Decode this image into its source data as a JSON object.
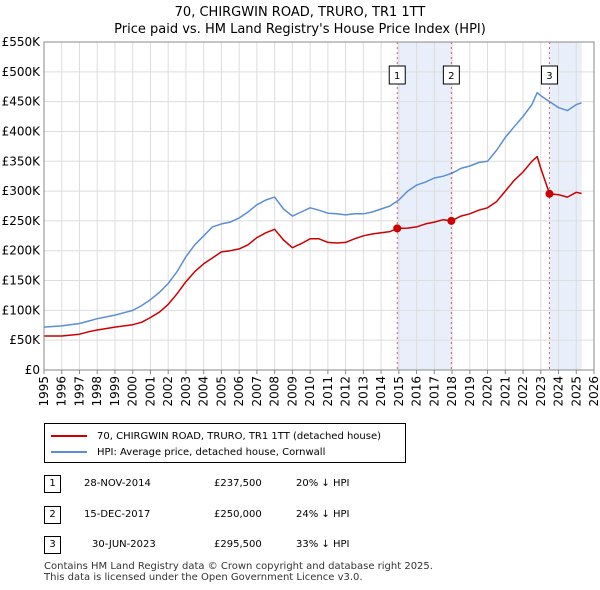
{
  "title": {
    "line1": "70, CHIRGWIN ROAD, TRURO, TR1 1TT",
    "line2": "Price paid vs. HM Land Registry's House Price Index (HPI)"
  },
  "colors": {
    "property": "#cc0000",
    "hpi": "#5b8ed6",
    "shade": "#e8eefa",
    "marker_line": "#cc0000"
  },
  "legend": {
    "property_label": "70, CHIRGWIN ROAD, TRURO, TR1 1TT (detached house)",
    "hpi_label": "HPI: Average price, detached house, Cornwall"
  },
  "sales": [
    {
      "num": "1",
      "date": "28-NOV-2014",
      "price": "£237,500",
      "hpi": "20% ↓ HPI",
      "year": 2014.91,
      "value": 237500
    },
    {
      "num": "2",
      "date": "15-DEC-2017",
      "price": "£250,000",
      "hpi": "24% ↓ HPI",
      "year": 2017.96,
      "value": 250000
    },
    {
      "num": "3",
      "date": "30-JUN-2023",
      "price": "£295,500",
      "hpi": "33% ↓ HPI",
      "year": 2023.49,
      "value": 295500
    }
  ],
  "footer": {
    "line1": "Contains HM Land Registry data © Crown copyright and database right 2025.",
    "line2": "This data is licensed under the Open Government Licence v3.0."
  },
  "chart_data": {
    "type": "line",
    "title": "Price paid vs. HM Land Registry's House Price Index (HPI)",
    "xlabel": "",
    "ylabel": "",
    "xlim": [
      1995,
      2026
    ],
    "ylim": [
      0,
      550000
    ],
    "x_ticks": [
      "1995",
      "1996",
      "1997",
      "1998",
      "1999",
      "2000",
      "2001",
      "2002",
      "2003",
      "2004",
      "2005",
      "2006",
      "2007",
      "2008",
      "2009",
      "2010",
      "2011",
      "2012",
      "2013",
      "2014",
      "2015",
      "2016",
      "2017",
      "2018",
      "2019",
      "2020",
      "2021",
      "2022",
      "2023",
      "2024",
      "2025",
      "2026"
    ],
    "y_ticks": [
      {
        "value": 0,
        "label": "£0"
      },
      {
        "value": 50000,
        "label": "£50K"
      },
      {
        "value": 100000,
        "label": "£100K"
      },
      {
        "value": 150000,
        "label": "£150K"
      },
      {
        "value": 200000,
        "label": "£200K"
      },
      {
        "value": 250000,
        "label": "£250K"
      },
      {
        "value": 300000,
        "label": "£300K"
      },
      {
        "value": 350000,
        "label": "£350K"
      },
      {
        "value": 400000,
        "label": "£400K"
      },
      {
        "value": 450000,
        "label": "£450K"
      },
      {
        "value": 500000,
        "label": "£500K"
      },
      {
        "value": 550000,
        "label": "£550K"
      }
    ],
    "grid": true,
    "shaded_ranges": [
      [
        2014.91,
        2017.96
      ],
      [
        2023.49,
        2025.3
      ]
    ],
    "series": [
      {
        "name": "HPI: Average price, detached house, Cornwall",
        "x": [
          1995,
          1996,
          1997,
          1997.5,
          1998,
          1999,
          2000,
          2000.5,
          2001,
          2001.5,
          2002,
          2002.5,
          2003,
          2003.5,
          2004,
          2004.5,
          2005,
          2005.5,
          2006,
          2006.5,
          2007,
          2007.5,
          2008,
          2008.5,
          2009,
          2009.5,
          2010,
          2010.5,
          2011,
          2011.5,
          2012,
          2012.5,
          2013,
          2013.5,
          2014,
          2014.5,
          2015,
          2015.5,
          2016,
          2016.5,
          2017,
          2017.5,
          2018,
          2018.5,
          2019,
          2019.5,
          2020,
          2020.5,
          2021,
          2021.5,
          2022,
          2022.5,
          2022.8,
          2023,
          2023.5,
          2024,
          2024.5,
          2025,
          2025.3
        ],
        "values": [
          72000,
          74000,
          78000,
          82000,
          86000,
          92000,
          100000,
          108000,
          118000,
          130000,
          145000,
          165000,
          190000,
          210000,
          225000,
          240000,
          245000,
          248000,
          255000,
          265000,
          277000,
          285000,
          290000,
          270000,
          258000,
          265000,
          272000,
          268000,
          263000,
          262000,
          260000,
          262000,
          262000,
          265000,
          270000,
          275000,
          285000,
          300000,
          310000,
          315000,
          322000,
          325000,
          330000,
          338000,
          342000,
          348000,
          350000,
          368000,
          390000,
          408000,
          425000,
          445000,
          465000,
          460000,
          450000,
          440000,
          435000,
          445000,
          448000
        ]
      },
      {
        "name": "70, CHIRGWIN ROAD, TRURO, TR1 1TT (detached house)",
        "x": [
          1995,
          1996,
          1997,
          1997.5,
          1998,
          1999,
          2000,
          2000.5,
          2001,
          2001.5,
          2002,
          2002.5,
          2003,
          2003.5,
          2004,
          2004.5,
          2005,
          2005.5,
          2006,
          2006.5,
          2007,
          2007.5,
          2008,
          2008.5,
          2009,
          2009.5,
          2010,
          2010.5,
          2011,
          2011.5,
          2012,
          2012.5,
          2013,
          2013.5,
          2014,
          2014.5,
          2014.91,
          2015.5,
          2016,
          2016.5,
          2017,
          2017.5,
          2017.96,
          2018.5,
          2019,
          2019.5,
          2020,
          2020.5,
          2021,
          2021.5,
          2022,
          2022.5,
          2022.8,
          2023,
          2023.49,
          2024,
          2024.5,
          2025,
          2025.3
        ],
        "values": [
          57000,
          57000,
          60000,
          64000,
          67000,
          72000,
          76000,
          80000,
          88000,
          97000,
          110000,
          128000,
          148000,
          165000,
          178000,
          188000,
          198000,
          200000,
          203000,
          210000,
          222000,
          230000,
          236000,
          218000,
          205000,
          212000,
          220000,
          220000,
          214000,
          213000,
          214000,
          220000,
          225000,
          228000,
          230000,
          232000,
          237500,
          238000,
          240000,
          245000,
          248000,
          252000,
          250000,
          258000,
          262000,
          268000,
          272000,
          282000,
          300000,
          318000,
          332000,
          350000,
          358000,
          338000,
          295500,
          294000,
          290000,
          298000,
          296000
        ]
      }
    ],
    "sale_points": [
      {
        "num": "1",
        "x": 2014.91,
        "y": 237500
      },
      {
        "num": "2",
        "x": 2017.96,
        "y": 250000
      },
      {
        "num": "3",
        "x": 2023.49,
        "y": 295500
      }
    ]
  }
}
